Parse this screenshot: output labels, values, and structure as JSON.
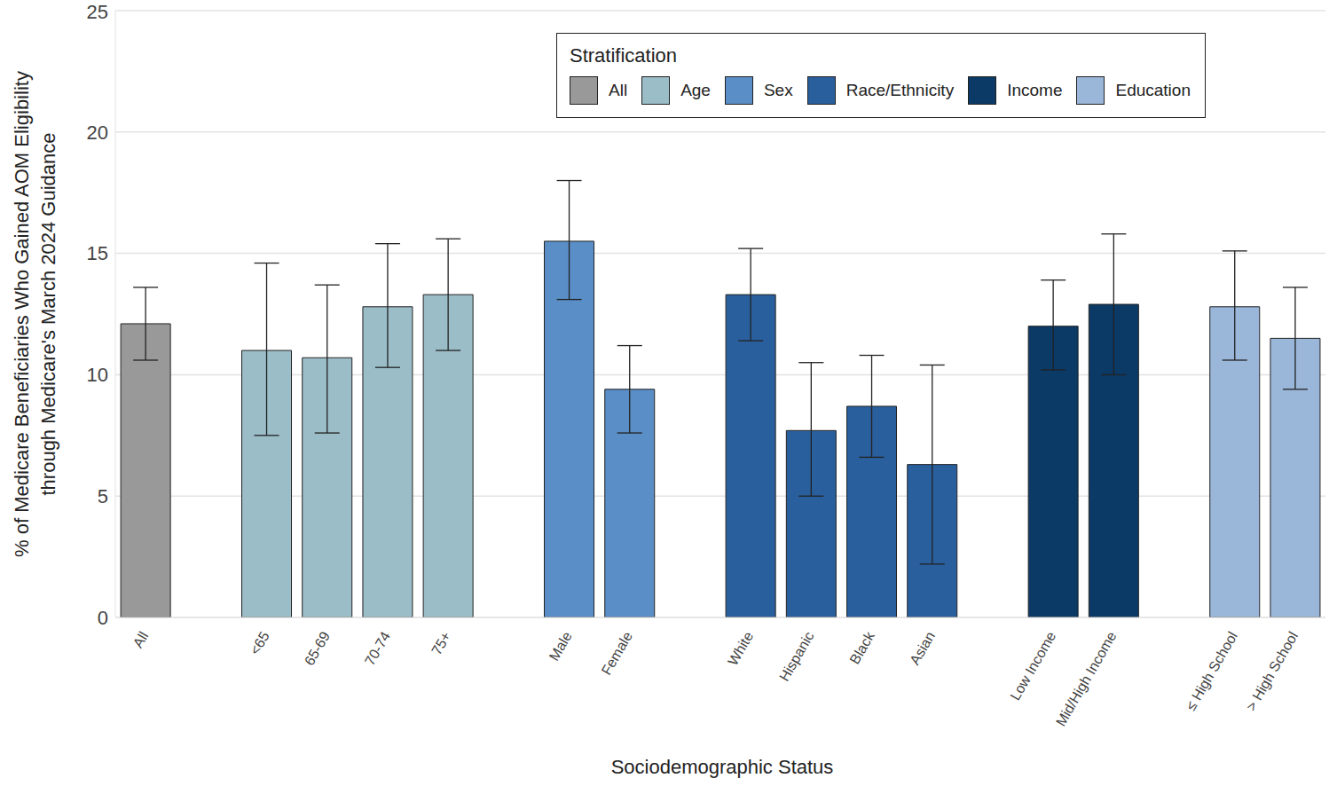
{
  "chart_data": {
    "type": "bar",
    "xlabel": "Sociodemographic Status",
    "ylabel": [
      "% of Medicare Beneficiaries Who Gained AOM Eligibility",
      "through Medicare's March 2024 Guidance"
    ],
    "categories": [
      "All",
      null,
      "<65",
      "65-69",
      "70-74",
      "75+",
      null,
      "Male",
      "Female",
      null,
      "White",
      "Hispanic",
      "Black",
      "Asian",
      null,
      "Low Income",
      "Mid/High Income",
      null,
      "≤ High School",
      "> High School"
    ],
    "values": [
      12.1,
      null,
      11.0,
      10.7,
      12.8,
      13.3,
      null,
      15.5,
      9.4,
      null,
      13.3,
      7.7,
      8.7,
      6.3,
      null,
      12.0,
      12.9,
      null,
      12.8,
      11.5
    ],
    "error_low": [
      10.6,
      null,
      7.5,
      7.6,
      10.3,
      11.0,
      null,
      13.1,
      7.6,
      null,
      11.4,
      5.0,
      6.6,
      2.2,
      null,
      10.2,
      10.0,
      null,
      10.6,
      9.4
    ],
    "error_high": [
      13.6,
      null,
      14.6,
      13.7,
      15.4,
      15.6,
      null,
      18.0,
      11.2,
      null,
      15.2,
      10.5,
      10.8,
      10.4,
      null,
      13.9,
      15.8,
      null,
      15.1,
      13.6
    ],
    "colors": [
      "#999999",
      null,
      "#9bbdc8",
      "#9bbdc8",
      "#9bbdc8",
      "#9bbdc8",
      null,
      "#5a8ec6",
      "#5a8ec6",
      null,
      "#2a5f9e",
      "#2a5f9e",
      "#2a5f9e",
      "#2a5f9e",
      null,
      "#0b3a66",
      "#0b3a66",
      null,
      "#9ab6d9",
      "#9ab6d9"
    ],
    "legend_title": "Stratification",
    "legend_entries": [
      {
        "name": "All",
        "color": "#999999"
      },
      {
        "name": "Age",
        "color": "#9bbdc8"
      },
      {
        "name": "Sex",
        "color": "#5a8ec6"
      },
      {
        "name": "Race/Ethnicity",
        "color": "#2a5f9e"
      },
      {
        "name": "Income",
        "color": "#0b3a66"
      },
      {
        "name": "Education",
        "color": "#9ab6d9"
      }
    ],
    "legend": "top",
    "ylim": [
      0,
      25
    ],
    "yticks": [
      0,
      5,
      10,
      15,
      20,
      25
    ],
    "grid": true
  }
}
